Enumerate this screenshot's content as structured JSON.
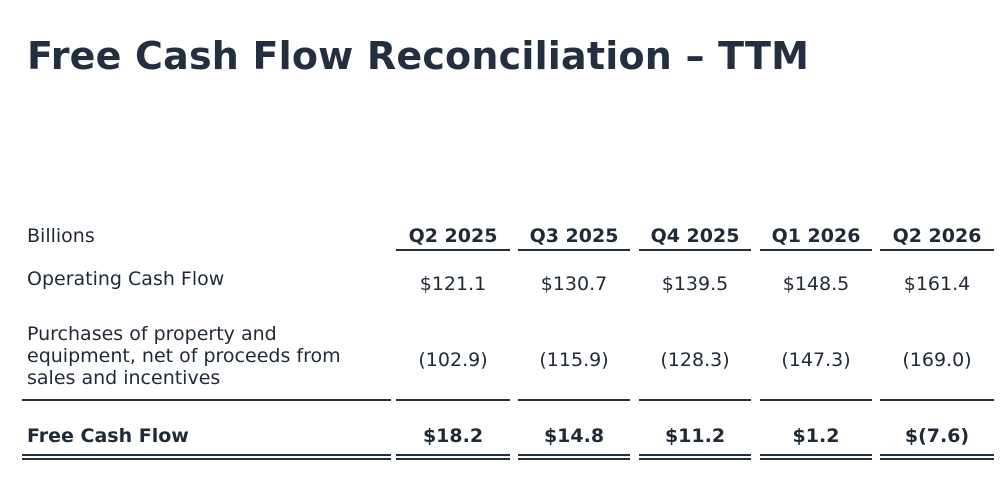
{
  "title": "Free Cash Flow Reconciliation – TTM",
  "table": {
    "units_label": "Billions",
    "columns": [
      "Q2 2025",
      "Q3 2025",
      "Q4 2025",
      "Q1 2026",
      "Q2 2026"
    ],
    "rows": [
      {
        "label": "Operating Cash Flow",
        "values": [
          "$121.1",
          "$130.7",
          "$139.5",
          "$148.5",
          "$161.4"
        ]
      },
      {
        "label": "Purchases of property and equipment, net of proceeds from sales and incentives",
        "label_lines": [
          "Purchases of property and",
          "equipment, net of proceeds from",
          "sales and incentives"
        ],
        "values": [
          "(102.9)",
          "(115.9)",
          "(128.3)",
          "(147.3)",
          "(169.0)"
        ]
      },
      {
        "label": "Free Cash Flow",
        "values": [
          "$18.2",
          "$14.8",
          "$11.2",
          "$1.2",
          "$(7.6)"
        ]
      }
    ]
  }
}
